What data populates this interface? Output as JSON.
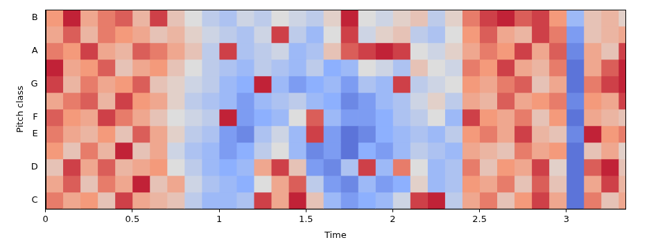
{
  "chart_data": {
    "type": "heatmap",
    "x_label": "Time",
    "y_label": "Pitch class",
    "categories": [
      "C",
      null,
      "D",
      null,
      "E",
      "F",
      null,
      "G",
      null,
      "A",
      null,
      "B"
    ],
    "x": [
      0,
      0.1,
      0.2,
      0.3,
      0.4,
      0.5,
      0.6,
      0.7,
      0.8,
      0.9,
      1.0,
      1.1,
      1.2,
      1.3,
      1.4,
      1.5,
      1.6,
      1.7,
      1.8,
      1.9,
      2.0,
      2.1,
      2.2,
      2.3,
      2.4,
      2.5,
      2.6,
      2.7,
      2.8,
      2.9,
      3.0,
      3.1,
      3.2,
      3.3
    ],
    "xlim": [
      0,
      3.34
    ],
    "xticks": [
      0,
      0.5,
      1,
      1.5,
      2,
      2.5,
      3
    ],
    "zlim": [
      0,
      1
    ],
    "grid": false,
    "cells": [
      [
        0.8,
        0.7,
        0.75,
        0.6,
        0.9,
        0.7,
        0.65,
        0.6,
        0.4,
        0.3,
        0.3,
        0.35,
        0.9,
        0.7,
        0.95,
        0.6,
        0.3,
        0.2,
        0.25,
        0.3,
        0.45,
        0.9,
        0.95,
        0.4,
        0.7,
        0.8,
        0.6,
        0.75,
        0.9,
        0.7,
        0.1,
        0.8,
        0.6,
        0.7
      ],
      [
        0.7,
        0.85,
        0.6,
        0.8,
        0.7,
        0.95,
        0.6,
        0.7,
        0.45,
        0.35,
        0.3,
        0.25,
        0.5,
        0.7,
        0.85,
        0.4,
        0.2,
        0.15,
        0.3,
        0.2,
        0.25,
        0.55,
        0.3,
        0.35,
        0.75,
        0.7,
        0.8,
        0.6,
        0.85,
        0.6,
        0.1,
        0.7,
        0.9,
        0.65
      ],
      [
        0.6,
        0.9,
        0.7,
        0.85,
        0.65,
        0.7,
        0.75,
        0.5,
        0.4,
        0.3,
        0.25,
        0.3,
        0.7,
        0.9,
        0.6,
        0.2,
        0.15,
        0.35,
        0.9,
        0.3,
        0.8,
        0.5,
        0.3,
        0.35,
        0.8,
        0.6,
        0.75,
        0.7,
        0.9,
        0.55,
        0.1,
        0.85,
        0.95,
        0.6
      ],
      [
        0.75,
        0.6,
        0.8,
        0.65,
        0.95,
        0.6,
        0.7,
        0.45,
        0.35,
        0.3,
        0.2,
        0.25,
        0.4,
        0.5,
        0.3,
        0.15,
        0.2,
        0.1,
        0.25,
        0.2,
        0.3,
        0.4,
        0.35,
        0.3,
        0.7,
        0.65,
        0.6,
        0.8,
        0.7,
        0.75,
        0.1,
        0.6,
        0.7,
        0.55
      ],
      [
        0.8,
        0.7,
        0.65,
        0.75,
        0.6,
        0.85,
        0.7,
        0.55,
        0.4,
        0.35,
        0.2,
        0.15,
        0.35,
        0.45,
        0.3,
        0.9,
        0.2,
        0.1,
        0.15,
        0.25,
        0.3,
        0.35,
        0.3,
        0.4,
        0.75,
        0.8,
        0.7,
        0.9,
        0.65,
        0.6,
        0.15,
        0.95,
        0.75,
        0.8
      ],
      [
        0.85,
        0.75,
        0.7,
        0.9,
        0.8,
        0.7,
        0.6,
        0.5,
        0.45,
        0.4,
        0.95,
        0.2,
        0.25,
        0.3,
        0.5,
        0.85,
        0.3,
        0.2,
        0.2,
        0.25,
        0.35,
        0.4,
        0.5,
        0.3,
        0.9,
        0.75,
        0.7,
        0.8,
        0.6,
        0.75,
        0.1,
        0.7,
        0.65,
        0.6
      ],
      [
        0.7,
        0.8,
        0.85,
        0.65,
        0.9,
        0.75,
        0.7,
        0.55,
        0.4,
        0.35,
        0.3,
        0.2,
        0.3,
        0.35,
        0.4,
        0.3,
        0.25,
        0.15,
        0.2,
        0.3,
        0.35,
        0.45,
        0.55,
        0.4,
        0.7,
        0.65,
        0.85,
        0.7,
        0.75,
        0.8,
        0.15,
        0.75,
        0.7,
        0.9
      ],
      [
        0.9,
        0.65,
        0.8,
        0.7,
        0.75,
        0.85,
        0.6,
        0.55,
        0.45,
        0.4,
        0.3,
        0.25,
        0.95,
        0.3,
        0.2,
        0.25,
        0.3,
        0.2,
        0.35,
        0.3,
        0.9,
        0.4,
        0.45,
        0.5,
        0.75,
        0.7,
        0.8,
        0.85,
        0.6,
        0.7,
        0.1,
        0.8,
        0.9,
        0.95
      ],
      [
        0.95,
        0.7,
        0.75,
        0.85,
        0.6,
        0.7,
        0.75,
        0.6,
        0.5,
        0.4,
        0.35,
        0.3,
        0.4,
        0.35,
        0.3,
        0.4,
        0.25,
        0.3,
        0.5,
        0.45,
        0.35,
        0.6,
        0.5,
        0.45,
        0.8,
        0.75,
        0.9,
        0.7,
        0.65,
        0.8,
        0.1,
        0.7,
        0.85,
        0.95
      ],
      [
        0.8,
        0.75,
        0.9,
        0.7,
        0.65,
        0.85,
        0.8,
        0.7,
        0.6,
        0.4,
        0.9,
        0.35,
        0.4,
        0.45,
        0.3,
        0.35,
        0.6,
        0.85,
        0.9,
        0.95,
        0.9,
        0.5,
        0.45,
        0.55,
        0.7,
        0.8,
        0.75,
        0.9,
        0.7,
        0.85,
        0.15,
        0.7,
        0.6,
        0.9
      ],
      [
        0.7,
        0.85,
        0.65,
        0.8,
        0.75,
        0.7,
        0.6,
        0.65,
        0.55,
        0.45,
        0.4,
        0.35,
        0.45,
        0.9,
        0.4,
        0.3,
        0.5,
        0.9,
        0.45,
        0.55,
        0.6,
        0.4,
        0.35,
        0.5,
        0.75,
        0.85,
        0.7,
        0.65,
        0.9,
        0.8,
        0.2,
        0.6,
        0.65,
        0.7
      ],
      [
        0.75,
        0.95,
        0.7,
        0.8,
        0.85,
        0.65,
        0.9,
        0.6,
        0.5,
        0.4,
        0.35,
        0.45,
        0.4,
        0.5,
        0.45,
        0.4,
        0.55,
        0.95,
        0.5,
        0.45,
        0.55,
        0.6,
        0.4,
        0.55,
        0.8,
        0.9,
        0.95,
        0.85,
        0.9,
        0.75,
        0.3,
        0.6,
        0.65,
        0.55
      ]
    ]
  }
}
